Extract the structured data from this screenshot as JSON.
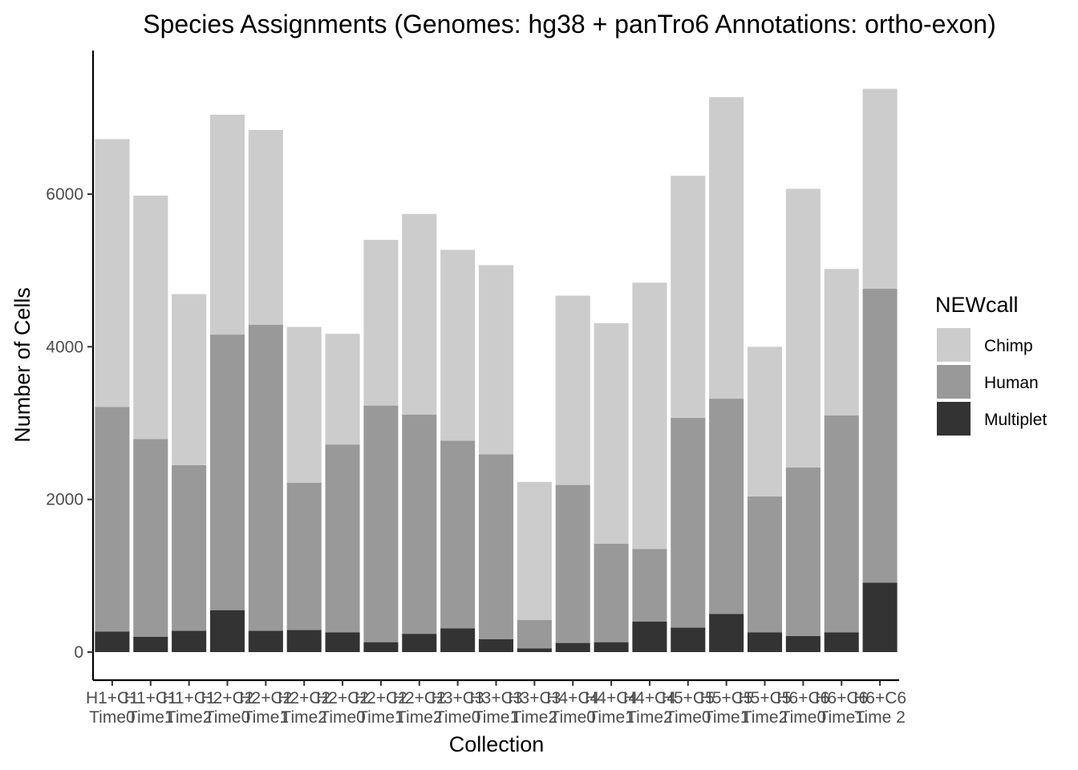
{
  "chart_data": {
    "type": "bar",
    "stacked": true,
    "title": "Species Assignments (Genomes: hg38 + panTro6 Annotations: ortho-exon)",
    "xlabel": "Collection",
    "ylabel": "Number of Cells",
    "ylim": [
      -350,
      7850
    ],
    "yticks": [
      0,
      2000,
      4000,
      6000
    ],
    "grid": false,
    "legend": {
      "title": "NEWcall",
      "position": "right"
    },
    "categories": [
      [
        "H1+C1",
        "Time0"
      ],
      [
        "H1+C1",
        "Time1"
      ],
      [
        "H1+C1",
        "Time2"
      ],
      [
        "H2+C2",
        "Time0"
      ],
      [
        "H2+C2",
        "Time1"
      ],
      [
        "H2+C2",
        "Time2"
      ],
      [
        "H2+C2",
        "Time0"
      ],
      [
        "H2+C2",
        "Time1"
      ],
      [
        "H2+C2",
        "Time2"
      ],
      [
        "H3+C3",
        "Time0"
      ],
      [
        "H3+C3",
        "Time1"
      ],
      [
        "H3+C3",
        "Time2"
      ],
      [
        "H4+C4",
        "Time0"
      ],
      [
        "H4+C4",
        "Time1"
      ],
      [
        "H4+C4",
        "Time2"
      ],
      [
        "H5+C5",
        "Time0"
      ],
      [
        "H5+C5",
        "Time1"
      ],
      [
        "H5+C5",
        "Time2"
      ],
      [
        "H6+C6",
        "Time0"
      ],
      [
        "H6+C6",
        "Time1"
      ],
      [
        "H6+C6",
        "Time 2"
      ]
    ],
    "series": [
      {
        "name": "Multiplet",
        "color": "#333333",
        "values": [
          270,
          200,
          280,
          550,
          280,
          290,
          260,
          130,
          240,
          310,
          170,
          50,
          120,
          130,
          400,
          320,
          500,
          260,
          210,
          260,
          910
        ]
      },
      {
        "name": "Human",
        "color": "#999999",
        "values": [
          2940,
          2590,
          2170,
          3610,
          4010,
          1930,
          2460,
          3100,
          2870,
          2460,
          2420,
          370,
          2070,
          1290,
          950,
          2750,
          2820,
          1780,
          2210,
          2840,
          3850
        ]
      },
      {
        "name": "Chimp",
        "color": "#cccccc",
        "values": [
          3510,
          3190,
          2240,
          2880,
          2550,
          2040,
          1450,
          2170,
          2630,
          2500,
          2480,
          1810,
          2480,
          2890,
          3490,
          3170,
          3950,
          1960,
          3650,
          1920,
          2620
        ]
      }
    ],
    "legend_order": [
      "Chimp",
      "Human",
      "Multiplet"
    ]
  }
}
